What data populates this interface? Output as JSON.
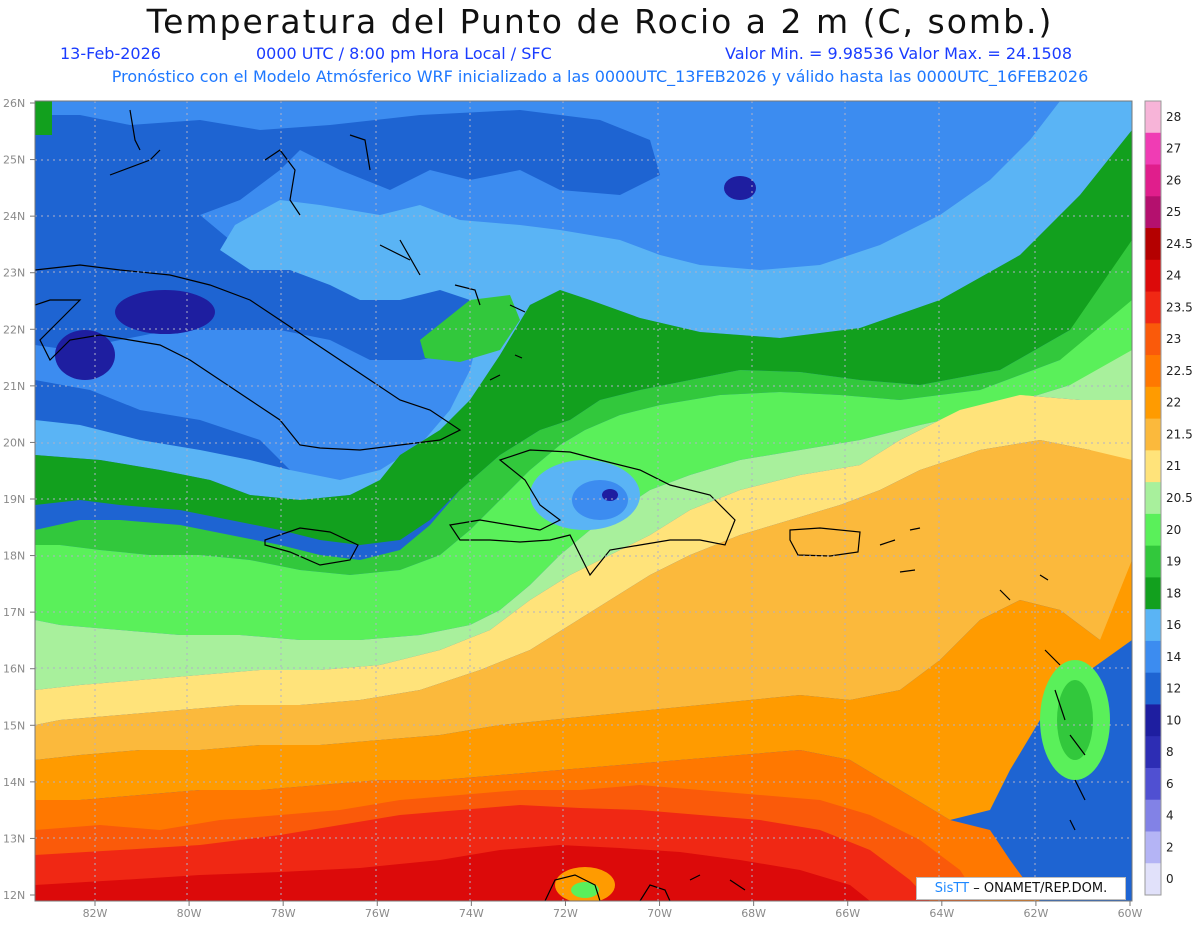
{
  "title": "Temperatura del Punto de Rocio a 2 m (C, somb.)",
  "date": "13-Feb-2026",
  "time_info": "0000 UTC / 8:00 pm Hora Local / SFC",
  "min_max": "Valor Min. = 9.98536  Valor Max. = 24.1508",
  "forecast_note": "Pronóstico con el Modelo Atmósferico WRF inicializado a las 0000UTC_13FEB2026 y válido hasta las  0000UTC_16FEB2026",
  "credit": {
    "logo": "SisTT",
    "text": "– ONAMET/REP.DOM."
  },
  "axes": {
    "lat_labels": [
      "26N",
      "25N",
      "24N",
      "23N",
      "22N",
      "21N",
      "20N",
      "19N",
      "18N",
      "17N",
      "16N",
      "15N",
      "14N",
      "13N",
      "12N"
    ],
    "lon_labels": [
      "82W",
      "80W",
      "78W",
      "76W",
      "74W",
      "72W",
      "70W",
      "68W",
      "66W",
      "64W",
      "62W",
      "60W"
    ]
  },
  "colorbar": {
    "labels": [
      "28",
      "27",
      "26",
      "25",
      "24.5",
      "24",
      "23.5",
      "23",
      "22.5",
      "22",
      "21.5",
      "21",
      "20.5",
      "20",
      "19",
      "18",
      "16",
      "14",
      "12",
      "10",
      "8",
      "6",
      "4",
      "2",
      "0"
    ],
    "colors": [
      "#f7b4d8",
      "#f03cb4",
      "#e01e8c",
      "#b4106e",
      "#b40000",
      "#dc0a0a",
      "#f02814",
      "#fa5a0a",
      "#ff7800",
      "#ff9b00",
      "#fbb93c",
      "#ffe37a",
      "#a8f09c",
      "#5af05a",
      "#32c83c",
      "#12a01e",
      "#5ab4f5",
      "#3c8cf0",
      "#1e64d2",
      "#1e1ea0",
      "#2d2db4",
      "#5050d2",
      "#8282e6",
      "#b4b4f5",
      "#e1e1fa"
    ]
  },
  "field_colors": {
    "c8": "#2d2db4",
    "c10": "#1e1ea0",
    "c12": "#1e64d2",
    "c14": "#3c8cf0",
    "c16": "#5ab4f5",
    "c18": "#12a01e",
    "c19": "#32c83c",
    "c20": "#5af05a",
    "c205": "#a8f09c",
    "c21": "#ffe37a",
    "c215": "#fbb93c",
    "c22": "#ff9b00",
    "c225": "#ff7800",
    "c23": "#fa5a0a",
    "c235": "#f02814",
    "c24": "#dc0a0a"
  }
}
